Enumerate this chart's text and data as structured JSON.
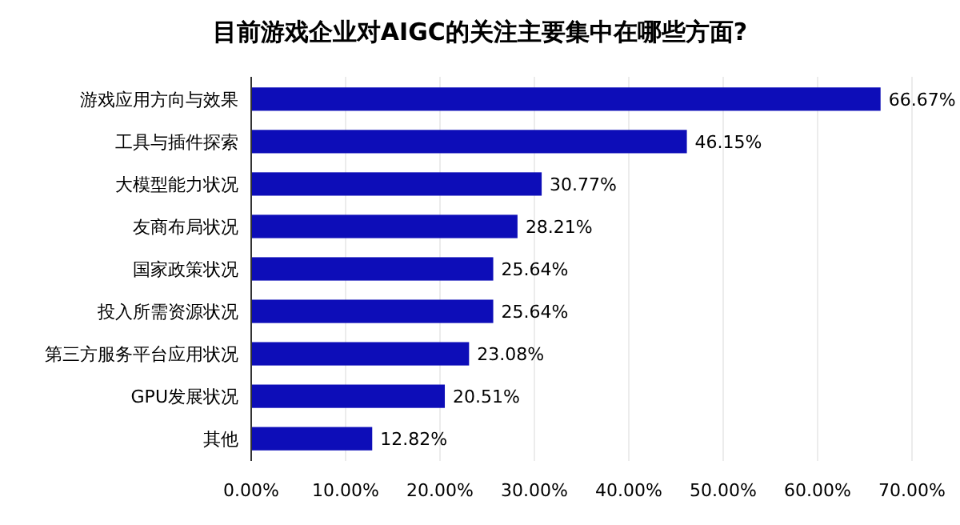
{
  "chart_data": {
    "type": "bar",
    "orientation": "horizontal",
    "title": "目前游戏企业对AIGC的关注主要集中在哪些方面?",
    "categories": [
      "游戏应用方向与效果",
      "工具与插件探索",
      "大模型能力状况",
      "友商布局状况",
      "国家政策状况",
      "投入所需资源状况",
      "第三方服务平台应用状况",
      "GPU发展状况",
      "其他"
    ],
    "values": [
      66.67,
      46.15,
      30.77,
      28.21,
      25.64,
      25.64,
      23.08,
      20.51,
      12.82
    ],
    "value_labels": [
      "66.67%",
      "46.15%",
      "30.77%",
      "28.21%",
      "25.64%",
      "25.64%",
      "23.08%",
      "20.51%",
      "12.82%"
    ],
    "color": "#0d0db8",
    "xlim": [
      0,
      70
    ],
    "xticks": [
      {
        "value": 0,
        "label": "0.00%"
      },
      {
        "value": 10,
        "label": "10.00%"
      },
      {
        "value": 20,
        "label": "20.00%"
      },
      {
        "value": 30,
        "label": "30.00%"
      },
      {
        "value": 40,
        "label": "40.00%"
      },
      {
        "value": 50,
        "label": "50.00%"
      },
      {
        "value": 60,
        "label": "60.00%"
      },
      {
        "value": 70,
        "label": "70.00%"
      }
    ],
    "grid": "x"
  }
}
